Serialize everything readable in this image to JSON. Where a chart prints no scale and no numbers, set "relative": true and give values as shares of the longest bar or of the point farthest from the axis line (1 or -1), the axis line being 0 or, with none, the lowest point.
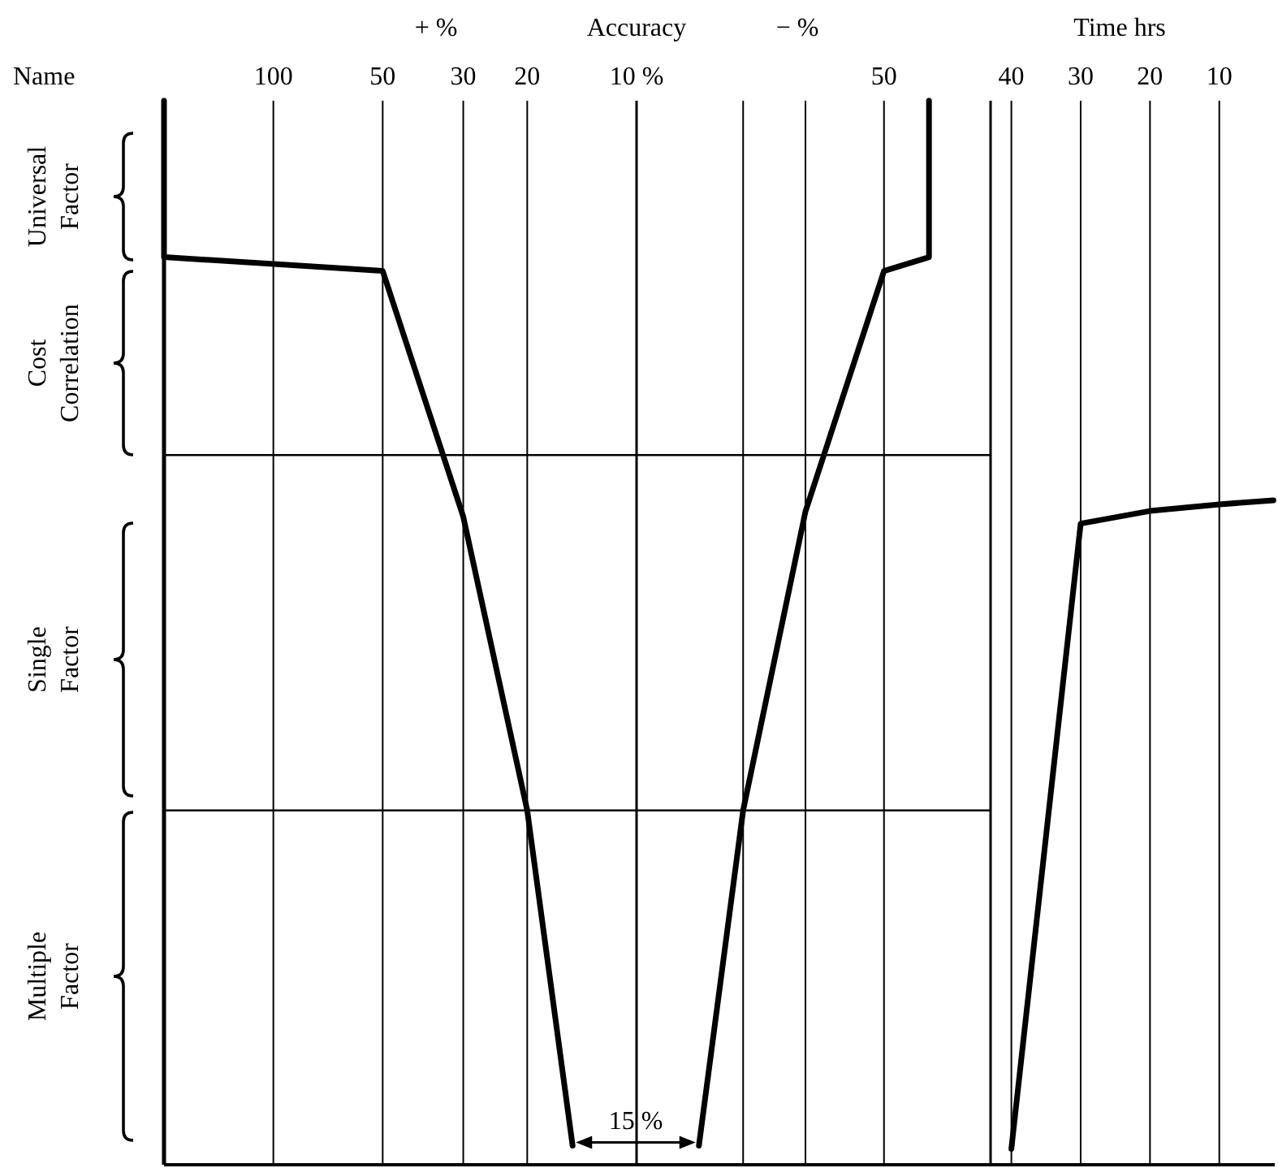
{
  "chart_data": [
    {
      "type": "line",
      "title": "Accuracy",
      "xlabel": "+ %",
      "ylabel": "Name",
      "relative": true,
      "log": "x",
      "grid": "x",
      "xlim": [
        200,
        10
      ],
      "xticks": [
        100,
        50,
        30,
        20
      ],
      "color": "#000000",
      "x": [
        200,
        200,
        50,
        30,
        20,
        15
      ],
      "values": [
        1.0,
        0.853,
        0.84,
        0.609,
        0.333,
        0.018
      ],
      "ref_lines": [
        {
          "axis": "y",
          "value": 0.667
        },
        {
          "axis": "y",
          "value": 0.333
        }
      ],
      "annotations": [
        "Universal Factor",
        "Cost Correlation",
        "Single Factor",
        "Multiple Factor",
        {
          "text": "15 %",
          "x": 15,
          "y": 0.018
        }
      ]
    },
    {
      "type": "line",
      "xlabel": "− %",
      "relative": true,
      "log": "x",
      "grid": "x",
      "xlim": [
        10,
        100
      ],
      "xticks": [
        {
          "value": 10,
          "label": "10 %"
        },
        {
          "value": 20,
          "label": null
        },
        {
          "value": 30,
          "label": null
        },
        50
      ],
      "color": "#000000",
      "x": [
        67,
        67,
        50,
        30,
        20,
        15
      ],
      "values": [
        1.0,
        0.853,
        0.84,
        0.614,
        0.333,
        0.018
      ],
      "ref_lines": [
        {
          "axis": "y",
          "value": 0.667
        },
        {
          "axis": "y",
          "value": 0.333
        }
      ]
    },
    {
      "type": "line",
      "xlabel": "Time hrs",
      "relative": true,
      "grid": "x",
      "xlim": [
        43,
        2
      ],
      "xticks": [
        40,
        30,
        20,
        10
      ],
      "color": "#000000",
      "x": [
        40,
        30,
        20,
        10,
        2.2
      ],
      "values": [
        0.024,
        0.965,
        0.984,
        0.994,
        1.0
      ]
    }
  ]
}
